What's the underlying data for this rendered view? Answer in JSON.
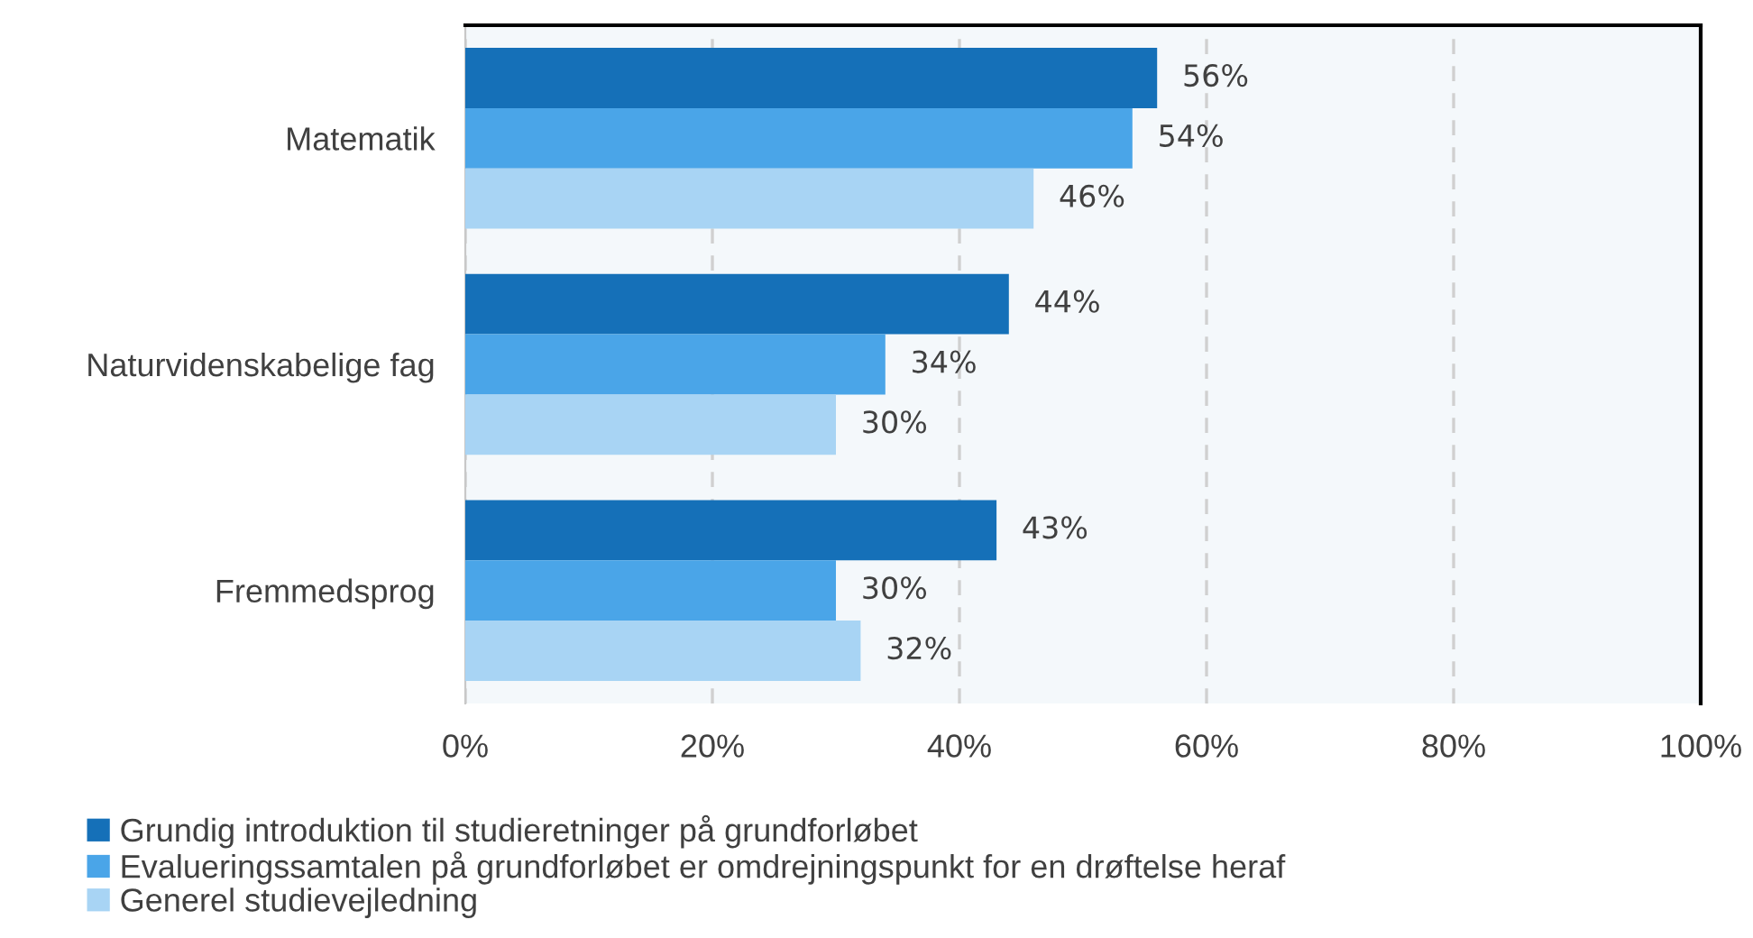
{
  "chart_data": {
    "type": "bar",
    "orientation": "horizontal",
    "categories": [
      "Matematik",
      "Naturvidenskabelige fag",
      "Fremmedsprog"
    ],
    "series": [
      {
        "name": "Grundig introduktion til studieretninger på grundforløbet",
        "color": "#1570b8",
        "values": [
          56,
          44,
          43
        ],
        "value_labels": [
          "56%",
          "44%",
          "43%"
        ]
      },
      {
        "name": "Evalueringssamtalen på grundforløbet er omdrejningspunkt for en drøftelse heraf",
        "color": "#4aa5e8",
        "values": [
          54,
          34,
          30
        ],
        "value_labels": [
          "54%",
          "34%",
          "30%"
        ]
      },
      {
        "name": "Generel studievejledning",
        "color": "#a8d4f4",
        "values": [
          46,
          30,
          32
        ],
        "value_labels": [
          "46%",
          "30%",
          "32%"
        ]
      }
    ],
    "xlim": [
      0,
      100
    ],
    "xticks": [
      {
        "value": 0,
        "label": "0%"
      },
      {
        "value": 20,
        "label": "20%"
      },
      {
        "value": 40,
        "label": "40%"
      },
      {
        "value": 60,
        "label": "60%"
      },
      {
        "value": 80,
        "label": "80%"
      },
      {
        "value": 100,
        "label": "100%"
      }
    ],
    "grid": "x",
    "legend": "bottom left"
  }
}
